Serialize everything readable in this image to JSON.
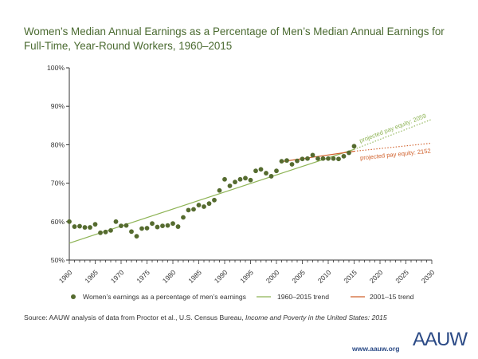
{
  "title": "Women’s Median Annual Earnings as a Percentage of Men’s Median Annual Earnings for Full-Time, Year-Round Workers, 1960–2015",
  "source": {
    "prefix": "Source: AAUW analysis of data from Proctor et al., U.S. Census Bureau, ",
    "publication": "Income and Poverty in the United States: 2015"
  },
  "footer": {
    "url": "www.aauw.org",
    "logo_text": "AAUW"
  },
  "colors": {
    "dot": "#556b2f",
    "trend_1960": "#8db354",
    "trend_2001": "#d0602a",
    "title": "#4a6a30",
    "axis": "#333333",
    "brand": "#2b4a86"
  },
  "chart_data": {
    "type": "scatter",
    "title": "Women’s Median Annual Earnings as a Percentage of Men’s Median Annual Earnings for Full-Time, Year-Round Workers, 1960–2015",
    "xlabel": "",
    "ylabel": "",
    "xlim": [
      1960,
      2030
    ],
    "ylim": [
      50,
      100
    ],
    "x_ticks": [
      1960,
      1965,
      1970,
      1975,
      1980,
      1985,
      1990,
      1995,
      2000,
      2005,
      2010,
      2015,
      2020,
      2025,
      2030
    ],
    "y_ticks": [
      50,
      60,
      70,
      80,
      90,
      100
    ],
    "y_tick_labels": [
      "50%",
      "60%",
      "70%",
      "80%",
      "90%",
      "100%"
    ],
    "grid": false,
    "legend_position": "bottom",
    "series": [
      {
        "name": "Women’s earnings as a percentage of men’s earnings",
        "x": [
          1960,
          1961,
          1962,
          1963,
          1964,
          1965,
          1966,
          1967,
          1968,
          1969,
          1970,
          1971,
          1972,
          1973,
          1974,
          1975,
          1976,
          1977,
          1978,
          1979,
          1980,
          1981,
          1982,
          1983,
          1984,
          1985,
          1986,
          1987,
          1988,
          1989,
          1990,
          1991,
          1992,
          1993,
          1994,
          1995,
          1996,
          1997,
          1998,
          1999,
          2000,
          2001,
          2002,
          2003,
          2004,
          2005,
          2006,
          2007,
          2008,
          2009,
          2010,
          2011,
          2012,
          2013,
          2014,
          2015
        ],
        "y": [
          60.0,
          58.7,
          58.8,
          58.5,
          58.5,
          59.3,
          57.1,
          57.3,
          57.7,
          60.0,
          58.9,
          59.0,
          57.4,
          56.2,
          58.2,
          58.3,
          59.5,
          58.6,
          58.9,
          59.0,
          59.5,
          58.7,
          61.1,
          63.0,
          63.2,
          64.3,
          63.9,
          64.7,
          65.6,
          68.1,
          71.0,
          69.3,
          70.3,
          71.0,
          71.3,
          70.8,
          73.2,
          73.6,
          72.6,
          71.8,
          73.2,
          75.7,
          75.9,
          74.9,
          75.8,
          76.3,
          76.4,
          77.3,
          76.4,
          76.4,
          76.4,
          76.4,
          76.3,
          77.0,
          77.9,
          79.6
        ]
      },
      {
        "name": "1960–2015 trend",
        "fit_range": [
          1960,
          2015
        ],
        "x": [
          1960,
          2015
        ],
        "y": [
          54.4,
          78.8
        ],
        "projection": {
          "x": [
            2015,
            2030
          ],
          "y": [
            78.8,
            86.6
          ]
        },
        "annotation": "projected pay equity: 2059"
      },
      {
        "name": "2001–15 trend",
        "fit_range": [
          2001,
          2015
        ],
        "x": [
          2001,
          2015
        ],
        "y": [
          75.6,
          78.3
        ],
        "projection": {
          "x": [
            2015,
            2030
          ],
          "y": [
            78.3,
            80.4
          ]
        },
        "annotation": "projected pay equity: 2152"
      }
    ]
  }
}
